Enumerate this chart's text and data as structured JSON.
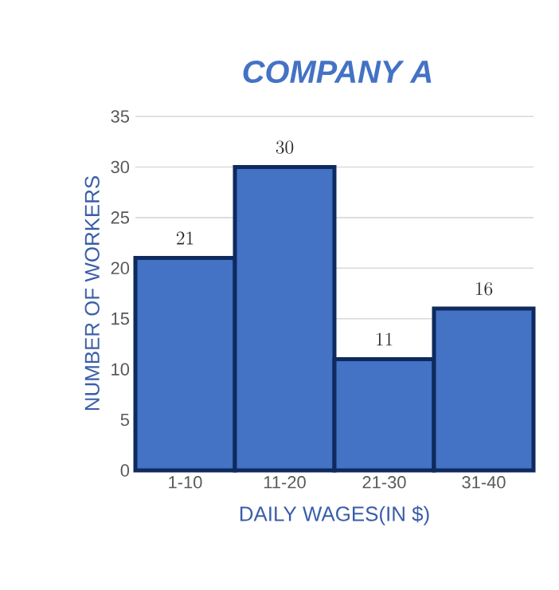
{
  "chart_data": {
    "type": "bar",
    "title": "COMPANY A",
    "xlabel": "DAILY WAGES(IN $)",
    "ylabel": "NUMBER OF WORKERS",
    "categories": [
      "1-10",
      "11-20",
      "21-30",
      "31-40"
    ],
    "values": [
      21,
      30,
      11,
      16
    ],
    "color": "#4472c4",
    "ylim": [
      0,
      35
    ],
    "yticks": [
      0,
      5,
      10,
      15,
      20,
      25,
      30,
      35
    ],
    "grid": "y",
    "data_labels": true
  }
}
